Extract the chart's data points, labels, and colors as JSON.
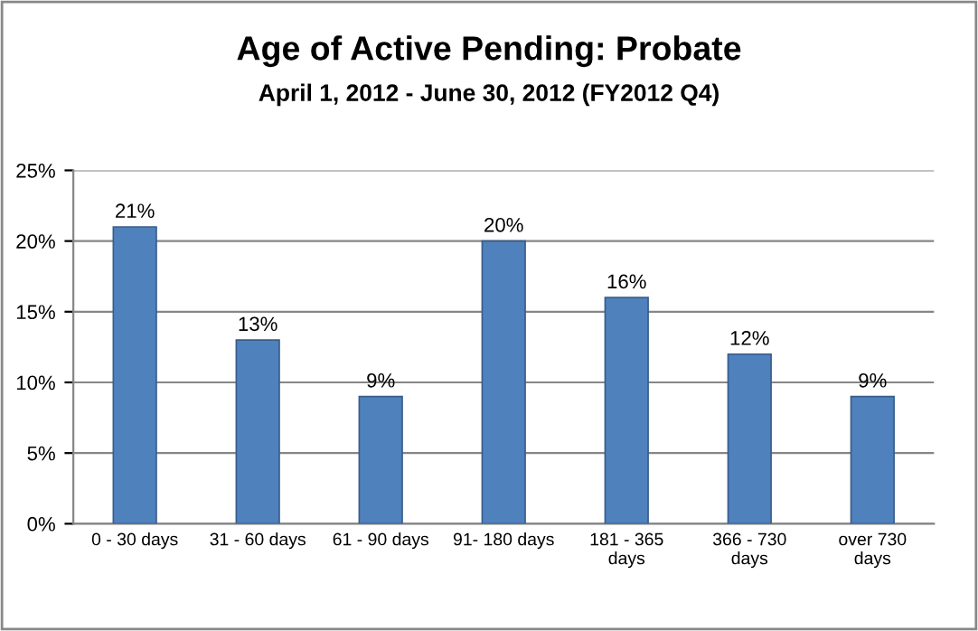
{
  "chart_data": {
    "type": "bar",
    "title": "Age of Active Pending: Probate",
    "subtitle": "April 1, 2012 - June 30, 2012 (FY2012 Q4)",
    "categories": [
      "0 - 30 days",
      "31 - 60 days",
      "61 - 90 days",
      "91- 180 days",
      "181 - 365\ndays",
      "366 - 730\ndays",
      "over 730\ndays"
    ],
    "values": [
      21,
      13,
      9,
      20,
      16,
      12,
      9
    ],
    "color": "#4f81bd",
    "value_labels": [
      "21%",
      "13%",
      "9%",
      "20%",
      "16%",
      "12%",
      "9%"
    ],
    "ylim": [
      0,
      25
    ],
    "yticks": [
      {
        "value": 0,
        "label": "0%"
      },
      {
        "value": 5,
        "label": "5%"
      },
      {
        "value": 10,
        "label": "10%"
      },
      {
        "value": 15,
        "label": "15%"
      },
      {
        "value": 20,
        "label": "20%"
      },
      {
        "value": 25,
        "label": "25%"
      }
    ],
    "grid": "y",
    "legend": false
  }
}
